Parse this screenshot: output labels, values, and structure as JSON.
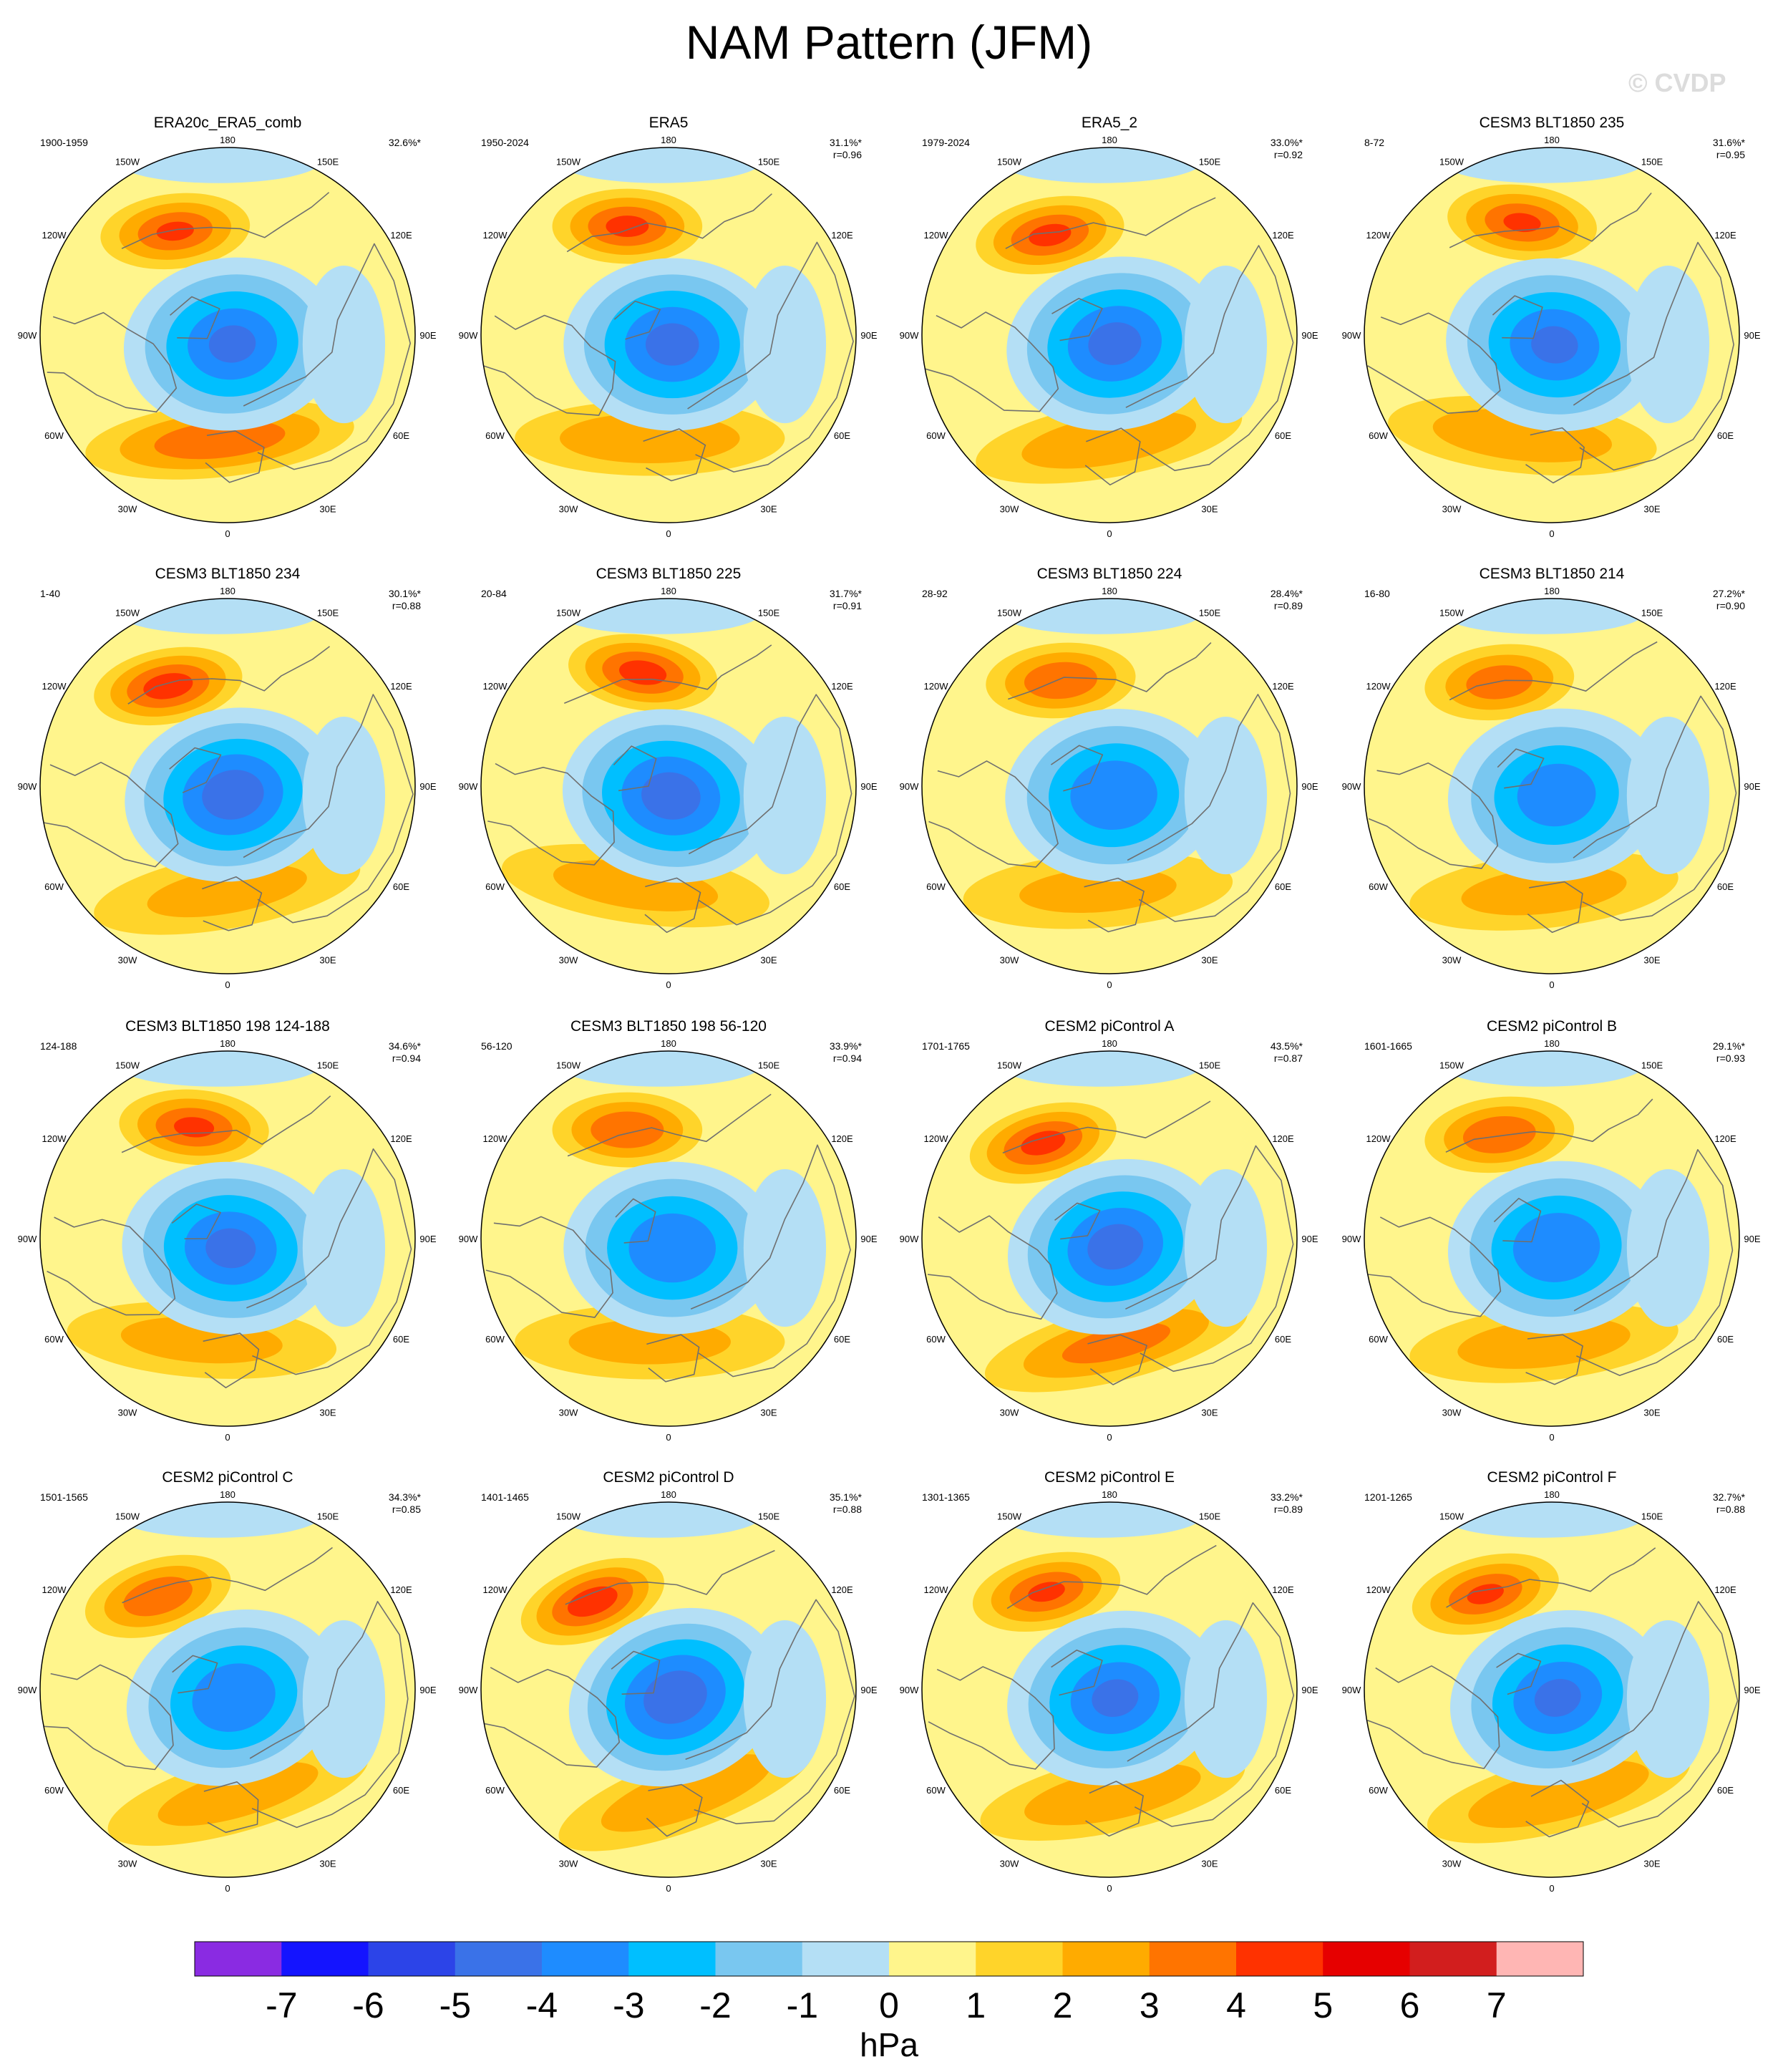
{
  "title": "NAM Pattern (JFM)",
  "watermark": "© CVDP",
  "colorbar": {
    "colors": [
      "#8a2be2",
      "#1414ff",
      "#2c44e8",
      "#3a72e8",
      "#1e8cff",
      "#00bfff",
      "#79c7f0",
      "#b4dff5",
      "#fff58c",
      "#ffd42a",
      "#ffab00",
      "#ff7400",
      "#ff3200",
      "#e60000",
      "#d21e1e",
      "#ffb6b4"
    ],
    "ticks": [
      "-7",
      "-6",
      "-5",
      "-4",
      "-3",
      "-2",
      "-1",
      "0",
      "1",
      "2",
      "3",
      "4",
      "5",
      "6",
      "7"
    ],
    "unit": "hPa"
  },
  "grid_labels": [
    "180",
    "150E",
    "120E",
    "90E",
    "60E",
    "30E",
    "0",
    "30W",
    "60W",
    "90W",
    "120W",
    "150W"
  ],
  "panels": [
    {
      "title": "ERA20c_ERA5_comb",
      "period": "1900-1959",
      "pct": "32.6%*",
      "r": ""
    },
    {
      "title": "ERA5",
      "period": "1950-2024",
      "pct": "31.1%*",
      "r": "r=0.96"
    },
    {
      "title": "ERA5_2",
      "period": "1979-2024",
      "pct": "33.0%*",
      "r": "r=0.92"
    },
    {
      "title": "CESM3 BLT1850 235",
      "period": "8-72",
      "pct": "31.6%*",
      "r": "r=0.95"
    },
    {
      "title": "CESM3 BLT1850 234",
      "period": "1-40",
      "pct": "30.1%*",
      "r": "r=0.88"
    },
    {
      "title": "CESM3 BLT1850 225",
      "period": "20-84",
      "pct": "31.7%*",
      "r": "r=0.91"
    },
    {
      "title": "CESM3 BLT1850 224",
      "period": "28-92",
      "pct": "28.4%*",
      "r": "r=0.89"
    },
    {
      "title": "CESM3 BLT1850 214",
      "period": "16-80",
      "pct": "27.2%*",
      "r": "r=0.90"
    },
    {
      "title": "CESM3 BLT1850 198 124-188",
      "period": "124-188",
      "pct": "34.6%*",
      "r": "r=0.94"
    },
    {
      "title": "CESM3 BLT1850 198 56-120",
      "period": "56-120",
      "pct": "33.9%*",
      "r": "r=0.94"
    },
    {
      "title": "CESM2 piControl A",
      "period": "1701-1765",
      "pct": "43.5%*",
      "r": "r=0.87"
    },
    {
      "title": "CESM2 piControl B",
      "period": "1601-1665",
      "pct": "29.1%*",
      "r": "r=0.93"
    },
    {
      "title": "CESM2 piControl C",
      "period": "1501-1565",
      "pct": "34.3%*",
      "r": "r=0.85"
    },
    {
      "title": "CESM2 piControl D",
      "period": "1401-1465",
      "pct": "35.1%*",
      "r": "r=0.88"
    },
    {
      "title": "CESM2 piControl E",
      "period": "1301-1365",
      "pct": "33.2%*",
      "r": "r=0.89"
    },
    {
      "title": "CESM2 piControl F",
      "period": "1201-1265",
      "pct": "32.7%*",
      "r": "r=0.88"
    }
  ]
}
